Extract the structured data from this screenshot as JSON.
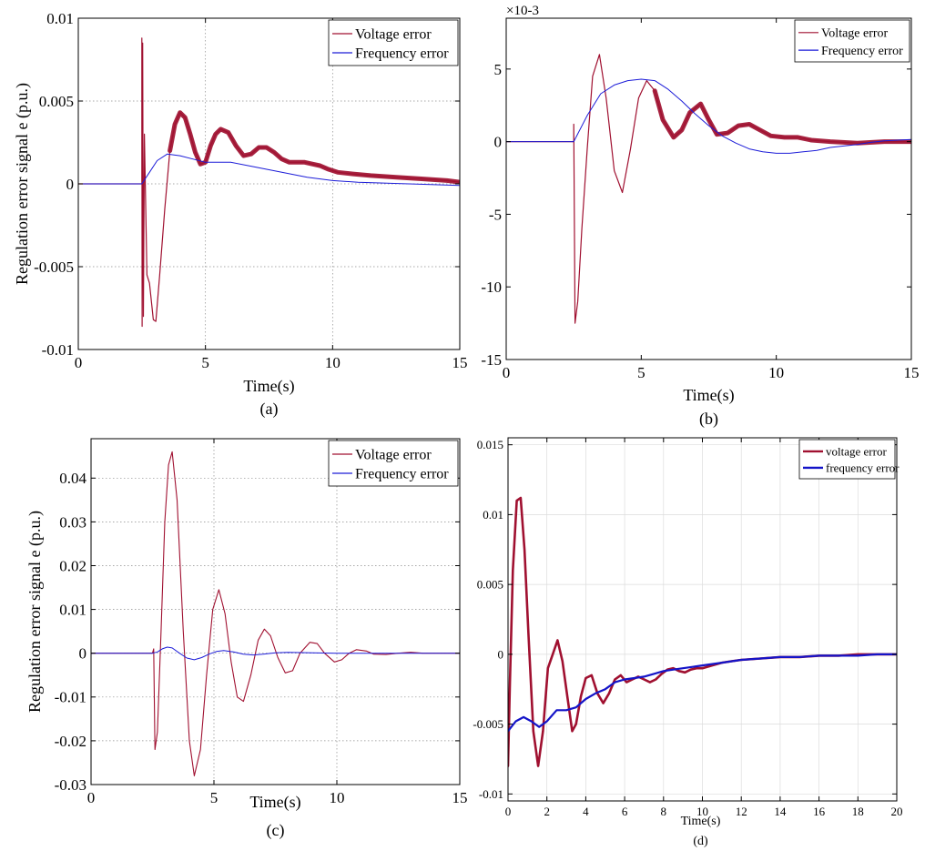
{
  "colors": {
    "voltage": "#a01030",
    "frequency": "#1c1cd8",
    "frequency_bold": "#1414c8"
  },
  "chart_data": [
    {
      "id": "a",
      "type": "line",
      "panel_label": "(a)",
      "xlabel": "Time(s)",
      "ylabel": "Regulation error signal e (p.u.)",
      "xlim": [
        0,
        15
      ],
      "ylim": [
        -0.01,
        0.01
      ],
      "xticks": [
        0,
        5,
        10,
        15
      ],
      "xtick_labels": [
        "0",
        "5",
        "10",
        "15"
      ],
      "yticks": [
        -0.01,
        -0.005,
        0,
        0.005,
        0.01
      ],
      "ytick_labels": [
        "-0.01",
        "-0.005",
        "0",
        "0.005",
        "0.01"
      ],
      "exponent_label": "",
      "grid": "dotted",
      "legend": "top-right",
      "series": [
        {
          "name": "Voltage error",
          "color_key": "voltage",
          "width": 1.2,
          "thick_ranges": [
            [
              3.6,
              15,
              5
            ]
          ],
          "x": [
            0,
            2.5,
            2.5,
            2.51,
            2.53,
            2.56,
            2.6,
            2.7,
            2.8,
            2.95,
            3.05,
            3.2,
            3.4,
            3.6,
            3.8,
            4.0,
            4.2,
            4.4,
            4.6,
            4.8,
            5.0,
            5.2,
            5.4,
            5.6,
            5.9,
            6.2,
            6.5,
            6.8,
            7.1,
            7.4,
            7.7,
            8.0,
            8.3,
            8.6,
            8.9,
            9.2,
            9.5,
            9.8,
            10.2,
            10.8,
            11.5,
            12.5,
            13.5,
            14.5,
            15
          ],
          "y": [
            0,
            0,
            0.0088,
            -0.0086,
            0.0085,
            -0.008,
            0.003,
            -0.0055,
            -0.006,
            -0.0082,
            -0.0083,
            -0.0055,
            -0.0015,
            0.002,
            0.0036,
            0.0043,
            0.004,
            0.003,
            0.0019,
            0.0012,
            0.0013,
            0.0023,
            0.003,
            0.0033,
            0.0031,
            0.0023,
            0.0017,
            0.0018,
            0.0022,
            0.0022,
            0.0019,
            0.0015,
            0.0013,
            0.0013,
            0.0013,
            0.0012,
            0.0011,
            0.0009,
            0.0007,
            0.0006,
            0.0005,
            0.0004,
            0.0003,
            0.0002,
            0.0001
          ]
        },
        {
          "name": "Frequency error",
          "color_key": "frequency",
          "width": 1.0,
          "thick_ranges": [],
          "x": [
            0,
            2.5,
            2.8,
            3.1,
            3.5,
            4.0,
            4.5,
            5.0,
            5.5,
            6.0,
            7.0,
            8.0,
            9.0,
            10.0,
            11.0,
            12.0,
            13.0,
            14.0,
            15.0
          ],
          "y": [
            0,
            0,
            0.0007,
            0.0014,
            0.0018,
            0.0017,
            0.0015,
            0.0013,
            0.0013,
            0.0013,
            0.001,
            0.0007,
            0.0004,
            0.0002,
            0.0001,
            5e-05,
            0.0,
            -5e-05,
            -0.0001
          ]
        }
      ]
    },
    {
      "id": "b",
      "type": "line",
      "panel_label": "(b)",
      "xlabel": "Time(s)",
      "ylabel": "",
      "xlim": [
        0,
        15
      ],
      "ylim": [
        -15,
        8.5
      ],
      "xticks": [
        0,
        5,
        10,
        15
      ],
      "xtick_labels": [
        "0",
        "5",
        "10",
        "15"
      ],
      "yticks": [
        -15,
        -10,
        -5,
        0,
        5
      ],
      "ytick_labels": [
        "-15",
        "-10",
        "-5",
        "0",
        "5"
      ],
      "exponent_label": "×10-3",
      "grid": "none",
      "legend": "top-right",
      "series": [
        {
          "name": "Voltage error",
          "color_key": "voltage",
          "width": 1.2,
          "thick_ranges": [
            [
              5.5,
              15,
              5
            ]
          ],
          "x": [
            0,
            2.5,
            2.5,
            2.55,
            2.65,
            2.8,
            3.0,
            3.2,
            3.45,
            3.7,
            4.0,
            4.3,
            4.6,
            4.9,
            5.2,
            5.5,
            5.8,
            6.2,
            6.5,
            6.8,
            7.2,
            7.5,
            7.8,
            8.2,
            8.6,
            9.0,
            9.4,
            9.8,
            10.3,
            10.8,
            11.3,
            12.0,
            13.0,
            14.0,
            15.0
          ],
          "y": [
            0,
            0,
            1.2,
            -12.5,
            -11.0,
            -6.0,
            -0.5,
            4.5,
            6.0,
            3.0,
            -2.0,
            -3.5,
            -0.5,
            3.0,
            4.2,
            3.5,
            1.5,
            0.3,
            0.8,
            2.0,
            2.6,
            1.5,
            0.5,
            0.6,
            1.1,
            1.2,
            0.8,
            0.4,
            0.3,
            0.3,
            0.1,
            0.0,
            -0.1,
            0.0,
            0.0
          ]
        },
        {
          "name": "Frequency error",
          "color_key": "frequency",
          "width": 1.0,
          "thick_ranges": [],
          "x": [
            0,
            2.5,
            3.0,
            3.5,
            4.0,
            4.5,
            5.0,
            5.5,
            6.0,
            6.5,
            7.0,
            7.5,
            8.0,
            8.5,
            9.0,
            9.5,
            10.0,
            10.5,
            11.0,
            11.5,
            12.0,
            12.5,
            13.0,
            13.5,
            14.0,
            14.5,
            15.0
          ],
          "y": [
            0,
            0,
            1.8,
            3.3,
            3.9,
            4.2,
            4.3,
            4.2,
            3.6,
            2.8,
            1.9,
            1.1,
            0.4,
            -0.1,
            -0.5,
            -0.7,
            -0.8,
            -0.8,
            -0.7,
            -0.6,
            -0.4,
            -0.3,
            -0.2,
            -0.05,
            0.05,
            0.1,
            0.15
          ]
        }
      ]
    },
    {
      "id": "c",
      "type": "line",
      "panel_label": "(c)",
      "xlabel": "Time(s)",
      "ylabel": "Regulation error signal e (p.u.)",
      "xlim": [
        0,
        15
      ],
      "ylim": [
        -0.03,
        0.049
      ],
      "xticks": [
        0,
        5,
        10,
        15
      ],
      "xtick_labels": [
        "0",
        "5",
        "10",
        "15"
      ],
      "yticks": [
        -0.03,
        -0.02,
        -0.01,
        0,
        0.01,
        0.02,
        0.03,
        0.04
      ],
      "ytick_labels": [
        "-0.03",
        "-0.02",
        "-0.01",
        "0",
        "0.01",
        "0.02",
        "0.03",
        "0.04"
      ],
      "exponent_label": "",
      "grid": "dotted",
      "legend": "top-right",
      "series": [
        {
          "name": "Voltage error",
          "color_key": "voltage",
          "width": 1.1,
          "thick_ranges": [],
          "x": [
            0,
            2.5,
            2.55,
            2.6,
            2.7,
            2.85,
            3.0,
            3.15,
            3.3,
            3.5,
            3.75,
            4.0,
            4.2,
            4.45,
            4.7,
            4.95,
            5.2,
            5.45,
            5.7,
            5.95,
            6.2,
            6.5,
            6.8,
            7.05,
            7.3,
            7.6,
            7.9,
            8.2,
            8.5,
            8.9,
            9.2,
            9.5,
            9.9,
            10.2,
            10.5,
            10.8,
            11.2,
            11.5,
            12.0,
            12.5,
            13.0,
            13.5,
            14.0,
            15.0
          ],
          "y": [
            0,
            0,
            0.001,
            -0.022,
            -0.018,
            0.005,
            0.03,
            0.043,
            0.046,
            0.035,
            0.005,
            -0.02,
            -0.028,
            -0.022,
            -0.005,
            0.01,
            0.0145,
            0.009,
            -0.002,
            -0.01,
            -0.011,
            -0.005,
            0.003,
            0.0055,
            0.004,
            -0.001,
            -0.0045,
            -0.004,
            0.0,
            0.0025,
            0.0022,
            0.0,
            -0.002,
            -0.0015,
            0.0,
            0.0008,
            0.0005,
            -0.0002,
            -0.0003,
            0.0,
            0.0002,
            0.0,
            0.0,
            0.0
          ]
        },
        {
          "name": "Frequency error",
          "color_key": "frequency",
          "width": 1.0,
          "thick_ranges": [],
          "x": [
            0,
            2.5,
            2.7,
            2.9,
            3.1,
            3.3,
            3.6,
            3.9,
            4.2,
            4.5,
            4.8,
            5.1,
            5.4,
            5.8,
            6.2,
            6.6,
            7.0,
            7.5,
            8.0,
            9.0,
            10.0,
            12.0,
            15.0
          ],
          "y": [
            0,
            0,
            0.0003,
            0.001,
            0.0014,
            0.0012,
            0.0,
            -0.0011,
            -0.0015,
            -0.001,
            -0.0002,
            0.0004,
            0.0006,
            0.0003,
            -0.0002,
            -0.0004,
            -0.0002,
            0.0001,
            0.0002,
            0.0001,
            0.0,
            0.0,
            0.0
          ]
        }
      ]
    },
    {
      "id": "d",
      "type": "line",
      "panel_label": "(d)",
      "xlabel": "Time(s)",
      "ylabel": "",
      "xlim": [
        0,
        20
      ],
      "ylim": [
        -0.0105,
        0.0155
      ],
      "xticks": [
        0,
        2,
        4,
        6,
        8,
        10,
        12,
        14,
        16,
        18,
        20
      ],
      "xtick_labels": [
        "0",
        "2",
        "4",
        "6",
        "8",
        "10",
        "12",
        "14",
        "16",
        "18",
        "20"
      ],
      "yticks": [
        -0.01,
        -0.005,
        0,
        0.005,
        0.01,
        0.015
      ],
      "ytick_labels": [
        "-0.01",
        "-0.005",
        "0",
        "0.005",
        "0.01",
        "0.015"
      ],
      "exponent_label": "",
      "grid": "solid",
      "legend": "top-right",
      "series": [
        {
          "name": "voltage error",
          "color_key": "voltage",
          "width": 2.6,
          "thick_ranges": [],
          "x": [
            0,
            0.1,
            0.25,
            0.45,
            0.65,
            0.85,
            1.05,
            1.3,
            1.55,
            1.8,
            2.05,
            2.3,
            2.55,
            2.8,
            3.05,
            3.3,
            3.5,
            3.75,
            4.0,
            4.3,
            4.6,
            4.9,
            5.2,
            5.5,
            5.8,
            6.1,
            6.4,
            6.7,
            7.0,
            7.3,
            7.6,
            7.9,
            8.2,
            8.5,
            8.8,
            9.1,
            9.4,
            9.7,
            10.0,
            10.5,
            11.0,
            11.5,
            12.0,
            13.0,
            14.0,
            15.0,
            16.0,
            17.0,
            18.0,
            19.0,
            20.0
          ],
          "y": [
            -0.008,
            -0.002,
            0.006,
            0.011,
            0.0112,
            0.0075,
            0.0015,
            -0.0055,
            -0.008,
            -0.0055,
            -0.001,
            0.0,
            0.001,
            -0.0005,
            -0.003,
            -0.0055,
            -0.005,
            -0.003,
            -0.0017,
            -0.0015,
            -0.0028,
            -0.0035,
            -0.0028,
            -0.0018,
            -0.0015,
            -0.002,
            -0.0018,
            -0.0016,
            -0.0018,
            -0.002,
            -0.0018,
            -0.0014,
            -0.0011,
            -0.001,
            -0.0012,
            -0.0013,
            -0.0011,
            -0.001,
            -0.001,
            -0.0008,
            -0.0006,
            -0.0005,
            -0.0004,
            -0.0003,
            -0.0002,
            -0.0002,
            -0.0001,
            -0.0001,
            0.0,
            0.0,
            0.0
          ]
        },
        {
          "name": "frequency error",
          "color_key": "frequency_bold",
          "width": 2.2,
          "thick_ranges": [],
          "x": [
            0,
            0.4,
            0.8,
            1.2,
            1.6,
            2.0,
            2.5,
            3.0,
            3.5,
            4.0,
            4.5,
            5.0,
            5.5,
            6.0,
            6.5,
            7.0,
            7.5,
            8.0,
            8.5,
            9.0,
            9.5,
            10.0,
            11.0,
            12.0,
            13.0,
            14.0,
            15.0,
            16.0,
            17.0,
            18.0,
            19.0,
            20.0
          ],
          "y": [
            -0.0055,
            -0.0048,
            -0.0045,
            -0.0048,
            -0.0052,
            -0.0048,
            -0.004,
            -0.004,
            -0.0038,
            -0.0032,
            -0.0028,
            -0.0025,
            -0.002,
            -0.0018,
            -0.0017,
            -0.0016,
            -0.0014,
            -0.0012,
            -0.0011,
            -0.001,
            -0.0009,
            -0.0008,
            -0.0006,
            -0.0004,
            -0.0003,
            -0.0002,
            -0.0002,
            -0.0001,
            -0.0001,
            -0.0001,
            0.0,
            0.0
          ]
        }
      ]
    }
  ]
}
